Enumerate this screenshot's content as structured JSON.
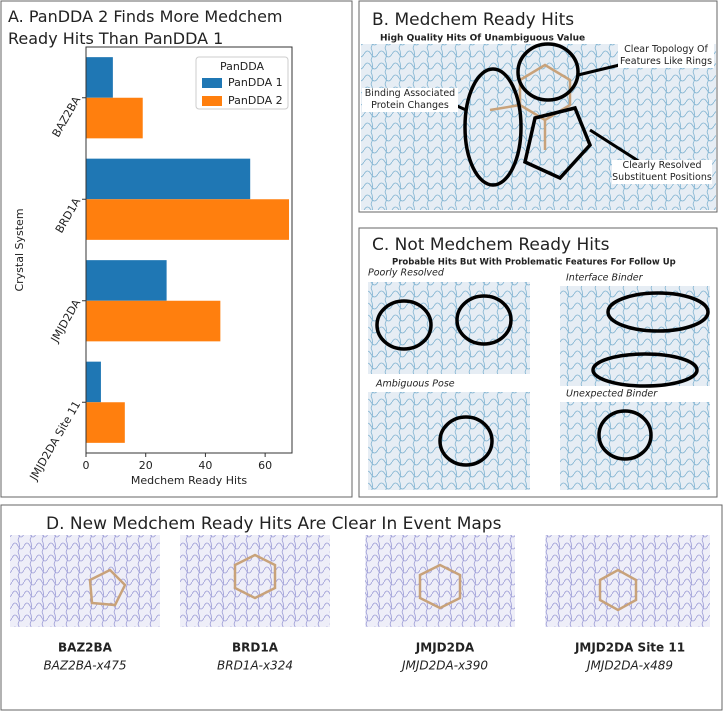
{
  "chart_data": {
    "type": "barh",
    "title": "A. PanDDA 2 Finds More Medchem Ready Hits Than PanDDA 1",
    "xlabel": "Medchem Ready Hits",
    "ylabel": "Crystal System",
    "categories": [
      "BAZ2BA",
      "BRD1A",
      "JMJD2DA",
      "JMJD2DA Site 11"
    ],
    "series": [
      {
        "name": "PanDDA 1",
        "color": "#1f77b4",
        "values": [
          9,
          55,
          27,
          5
        ]
      },
      {
        "name": "PanDDA 2",
        "color": "#ff7f0e",
        "values": [
          19,
          68,
          45,
          13
        ]
      }
    ],
    "legend_title": "PanDDA",
    "legend": "upper right",
    "xlim": [
      0,
      69
    ],
    "xticks": [
      0,
      20,
      40,
      60
    ],
    "grid": false
  },
  "panel_b": {
    "title": "B. Medchem Ready Hits",
    "subtitle": "High Quality Hits Of Unambiguous Value",
    "annotations": [
      "Clear Topology Of Features Like Rings",
      "Binding Associated Protein Changes",
      "Clearly Resolved Substituent Positions"
    ]
  },
  "panel_c": {
    "title": "C. Not Medchem Ready Hits",
    "subtitle": "Probable Hits But With Problematic Features For Follow Up",
    "labels": [
      "Poorly Resolved",
      "Interface Binder",
      "Ambiguous Pose",
      "Unexpected Binder"
    ]
  },
  "panel_d": {
    "title": "D. New Medchem Ready Hits Are Clear In Event Maps",
    "hits": [
      {
        "name": "BAZ2BA",
        "id": "BAZ2BA-x475"
      },
      {
        "name": "BRD1A",
        "id": "BRD1A-x324"
      },
      {
        "name": "JMJD2DA",
        "id": "JMJD2DA-x390"
      },
      {
        "name": "JMJD2DA Site 11",
        "id": "JMJD2DA-x489"
      }
    ]
  }
}
